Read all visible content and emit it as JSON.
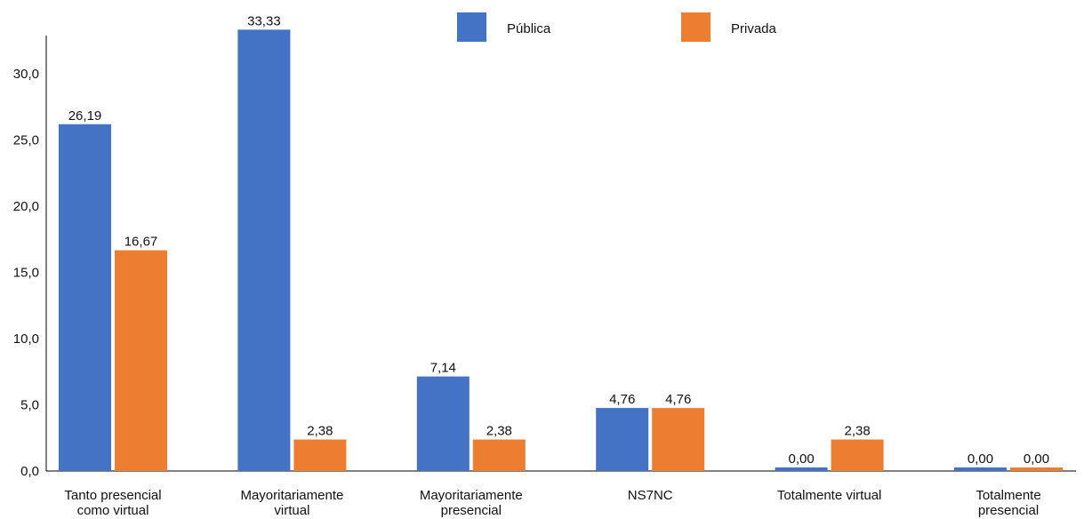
{
  "chart_data": {
    "type": "bar",
    "categories": [
      [
        "Tanto presencial",
        "como virtual"
      ],
      [
        "Mayoritariamente",
        "virtual"
      ],
      [
        "Mayoritariamente",
        "presencial"
      ],
      [
        "NS7NC"
      ],
      [
        "Totalmente virtual"
      ],
      [
        "Totalmente",
        "presencial"
      ]
    ],
    "series": [
      {
        "name": "Pública",
        "color": "#4472C4",
        "values": [
          26.19,
          33.33,
          7.14,
          4.76,
          0.0,
          0.0
        ],
        "labels": [
          "26,19",
          "33,33",
          "7,14",
          "4,76",
          "0,00",
          "0,00"
        ]
      },
      {
        "name": "Privada",
        "color": "#ED7D31",
        "values": [
          16.67,
          2.38,
          2.38,
          4.76,
          2.38,
          0.0
        ],
        "labels": [
          "16,67",
          "2,38",
          "2,38",
          "4,76",
          "2,38",
          "0,00"
        ]
      }
    ],
    "ylim": [
      0,
      35
    ],
    "yticks": [
      0,
      5,
      10,
      15,
      20,
      25,
      30
    ],
    "ytick_labels": [
      "0,0",
      "5,0",
      "10,0",
      "15,0",
      "20,0",
      "25,0",
      "30,0"
    ],
    "legend_position": "top-center",
    "grid": false,
    "title": "",
    "xlabel": "",
    "ylabel": ""
  }
}
